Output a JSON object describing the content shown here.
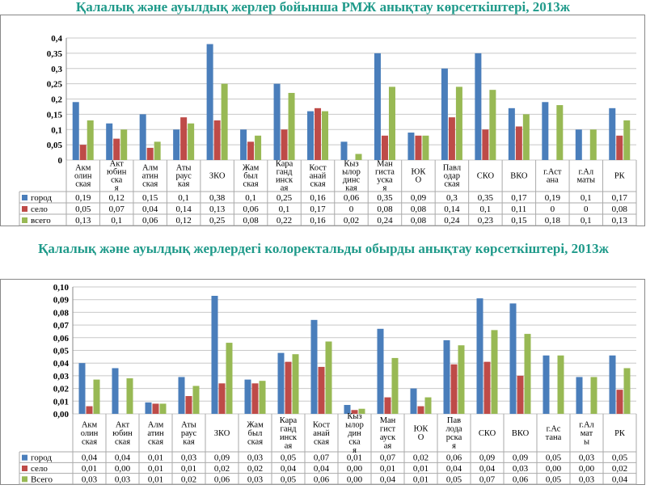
{
  "chart_data": [
    {
      "type": "bar",
      "title": "Қалалық және ауылдық жерлер бойынша РМЖ анықтау көрсеткіштері, 2013ж",
      "categories": [
        "Акмолинская",
        "Актюбинская",
        "Алматинская",
        "Атырауская",
        "ЗКО",
        "Жамбылская",
        "Карагандинская",
        "Костанайская",
        "Кызылординская",
        "Мангистауская",
        "ЮКО",
        "Павлодарская",
        "СКО",
        "ВКО",
        "г.Астана",
        "г.Алматы",
        "РК"
      ],
      "category_lines": [
        [
          "Акм",
          "олин",
          "ская"
        ],
        [
          "Акт",
          "юбин",
          "ска",
          "я"
        ],
        [
          "Алм",
          "атин",
          "ская"
        ],
        [
          "Аты",
          "раус",
          "кая"
        ],
        [
          "ЗКО"
        ],
        [
          "Жам",
          "был",
          "ская"
        ],
        [
          "Кара",
          "ганд",
          "инск",
          "ая"
        ],
        [
          "Кост",
          "анай",
          "ская"
        ],
        [
          "Кыз",
          "ылор",
          "динс",
          "кая"
        ],
        [
          "Ман",
          "гиста",
          "уска",
          "я"
        ],
        [
          "ЮК",
          "О"
        ],
        [
          "Павл",
          "одар",
          "ская"
        ],
        [
          "СКО"
        ],
        [
          "ВКО"
        ],
        [
          "г.Аст",
          "ана"
        ],
        [
          "г.Ал",
          "маты"
        ],
        [
          "РК"
        ]
      ],
      "series": [
        {
          "name": "город",
          "color": "#4a7ebb",
          "values": [
            0.19,
            0.12,
            0.15,
            0.1,
            0.38,
            0.1,
            0.25,
            0.16,
            0.06,
            0.35,
            0.09,
            0.3,
            0.35,
            0.17,
            0.19,
            0.1,
            0.17
          ],
          "labels": [
            "0,19",
            "0,12",
            "0,15",
            "0,1",
            "0,38",
            "0,1",
            "0,25",
            "0,16",
            "0,06",
            "0,35",
            "0,09",
            "0,3",
            "0,35",
            "0,17",
            "0,19",
            "0,1",
            "0,17"
          ]
        },
        {
          "name": "село",
          "color": "#be4b48",
          "values": [
            0.05,
            0.07,
            0.04,
            0.14,
            0.13,
            0.06,
            0.1,
            0.17,
            0,
            0.08,
            0.08,
            0.14,
            0.1,
            0.11,
            0,
            0,
            0.08
          ],
          "labels": [
            "0,05",
            "0,07",
            "0,04",
            "0,14",
            "0,13",
            "0,06",
            "0,1",
            "0,17",
            "0",
            "0,08",
            "0,08",
            "0,14",
            "0,1",
            "0,11",
            "0",
            "0",
            "0,08"
          ]
        },
        {
          "name": "всего",
          "color": "#98b954",
          "values": [
            0.13,
            0.1,
            0.06,
            0.12,
            0.25,
            0.08,
            0.22,
            0.16,
            0.02,
            0.24,
            0.08,
            0.24,
            0.23,
            0.15,
            0.18,
            0.1,
            0.13
          ],
          "labels": [
            "0,13",
            "0,1",
            "0,06",
            "0,12",
            "0,25",
            "0,08",
            "0,22",
            "0,16",
            "0,02",
            "0,24",
            "0,08",
            "0,24",
            "0,23",
            "0,15",
            "0,18",
            "0,1",
            "0,13"
          ]
        }
      ],
      "ylim": [
        0,
        0.4
      ],
      "yticks": [
        "0",
        "0,05",
        "0,1",
        "0,15",
        "0,2",
        "0,25",
        "0,3",
        "0,35",
        "0,4"
      ]
    },
    {
      "type": "bar",
      "title": "Қалалық және ауылдық жерлердегі колоректальды обырды анықтау көрсеткіштері, 2013ж",
      "categories": [
        "Акмолинская",
        "Актюбинская",
        "Алматинская",
        "Атырауская",
        "ЗКО",
        "Жамбылская",
        "Карагандинская",
        "Костанайская",
        "Кызылординская",
        "Мангистауская",
        "ЮКО",
        "Павлодарская",
        "СКО",
        "ВКО",
        "г.Астана",
        "г.Алматы",
        "РК"
      ],
      "category_lines": [
        [
          "Акм",
          "олин",
          "ская"
        ],
        [
          "Акт",
          "юбин",
          "ская"
        ],
        [
          "Алм",
          "атин",
          "ская"
        ],
        [
          "Аты",
          "раус",
          "кая"
        ],
        [
          "ЗКО"
        ],
        [
          "Жам",
          "был",
          "ская"
        ],
        [
          "Кара",
          "ганд",
          "инск",
          "ая"
        ],
        [
          "Кост",
          "анай",
          "ская"
        ],
        [
          "Кыз",
          "ылор",
          "дин",
          "ска",
          "я"
        ],
        [
          "Ман",
          "гист",
          "ауск",
          "ая"
        ],
        [
          "ЮК",
          "О"
        ],
        [
          "Пав",
          "лода",
          "рска",
          "я"
        ],
        [
          "СКО"
        ],
        [
          "ВКО"
        ],
        [
          "г.Ас",
          "тана"
        ],
        [
          "г.Ал",
          "мат",
          "ы"
        ],
        [
          "РК"
        ]
      ],
      "series": [
        {
          "name": "город",
          "color": "#4a7ebb",
          "values": [
            0.04,
            0.036,
            0.009,
            0.029,
            0.093,
            0.027,
            0.048,
            0.074,
            0.007,
            0.067,
            0.02,
            0.058,
            0.091,
            0.087,
            0.046,
            0.029,
            0.046
          ],
          "labels": [
            "0,04",
            "0,04",
            "0,01",
            "0,03",
            "0,09",
            "0,03",
            "0,05",
            "0,07",
            "0,01",
            "0,07",
            "0,02",
            "0,06",
            "0,09",
            "0,09",
            "0,05",
            "0,03",
            "0,05"
          ]
        },
        {
          "name": "село",
          "color": "#be4b48",
          "values": [
            0.006,
            0,
            0.008,
            0.014,
            0.024,
            0.024,
            0.041,
            0.037,
            0.003,
            0.013,
            0.006,
            0.039,
            0.041,
            0.03,
            0,
            0,
            0.019
          ],
          "labels": [
            "0,01",
            "0,00",
            "0,01",
            "0,01",
            "0,02",
            "0,02",
            "0,04",
            "0,04",
            "0,00",
            "0,01",
            "0,01",
            "0,04",
            "0,04",
            "0,03",
            "0,00",
            "0,00",
            "0,02"
          ]
        },
        {
          "name": "Всего",
          "color": "#98b954",
          "values": [
            0.027,
            0.028,
            0.008,
            0.022,
            0.056,
            0.026,
            0.047,
            0.057,
            0.004,
            0.044,
            0.013,
            0.054,
            0.066,
            0.063,
            0.046,
            0.029,
            0.036
          ],
          "labels": [
            "0,03",
            "0,03",
            "0,01",
            "0,02",
            "0,06",
            "0,03",
            "0,05",
            "0,06",
            "0,00",
            "0,04",
            "0,01",
            "0,05",
            "0,07",
            "0,06",
            "0,05",
            "0,03",
            "0,04"
          ]
        }
      ],
      "ylim": [
        0,
        0.1
      ],
      "yticks": [
        "0,00",
        "0,01",
        "0,02",
        "0,03",
        "0,04",
        "0,05",
        "0,06",
        "0,07",
        "0,08",
        "0,09",
        "0,10"
      ]
    }
  ]
}
